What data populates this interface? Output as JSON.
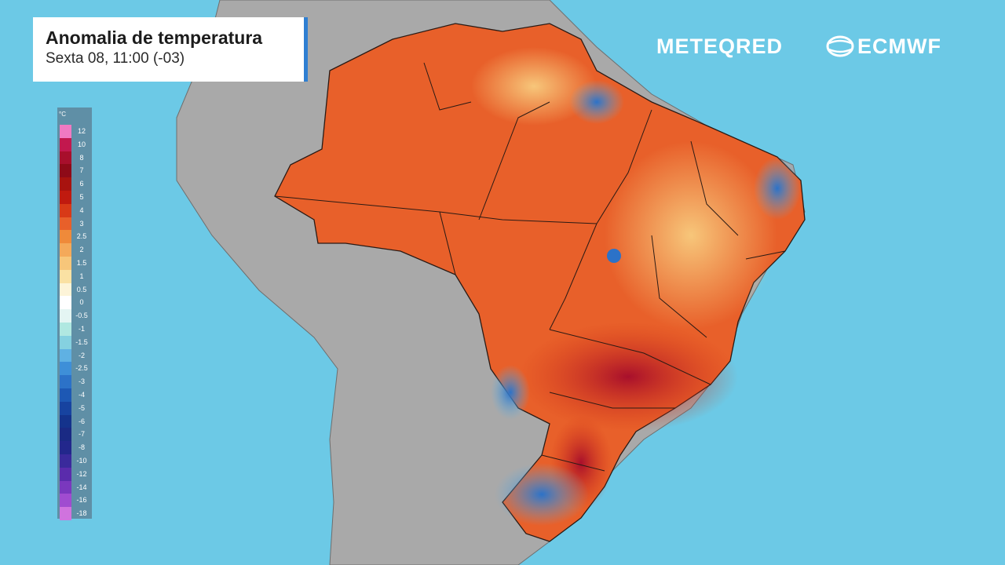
{
  "title": "Anomalia de temperatura",
  "subtitle": "Sexta 08, 11:00 (-03)",
  "brands": {
    "meteored": "METEQRED",
    "ecmwf": "ECMWF",
    "ecmwf_icon": "ecmwf-swirl-icon"
  },
  "colors": {
    "ocean": "#6cc9e6",
    "land": "#a9a9a9",
    "title_accent": "#2f7fd2"
  },
  "legend": {
    "unit": "°C",
    "ticks": [
      "12",
      "10",
      "8",
      "7",
      "6",
      "5",
      "4",
      "3",
      "2.5",
      "2",
      "1.5",
      "1",
      "0.5",
      "0",
      "-0.5",
      "-1",
      "-1.5",
      "-2",
      "-2.5",
      "-3",
      "-4",
      "-5",
      "-6",
      "-7",
      "-8",
      "-10",
      "-12",
      "-14",
      "-16",
      "-18"
    ],
    "colors": [
      "#f07ac2",
      "#c2184e",
      "#a80f2c",
      "#8e0a18",
      "#a8130f",
      "#c01a0f",
      "#d83a17",
      "#e8602a",
      "#ef8a3a",
      "#f4a95a",
      "#f7c67a",
      "#fae1a3",
      "#fdf4d8",
      "#ffffff",
      "#e4f5f3",
      "#b0e8e1",
      "#85d1e0",
      "#5fb1e3",
      "#3e8fd8",
      "#2c72c8",
      "#1d58b4",
      "#1743a0",
      "#14338c",
      "#1a2a84",
      "#22278c",
      "#3a2a9c",
      "#5a2cac",
      "#7a38be",
      "#a04cd0",
      "#d073de"
    ]
  },
  "map_regions": [
    {
      "id": "brazil-anomaly",
      "description_color": "#e8602a"
    }
  ]
}
